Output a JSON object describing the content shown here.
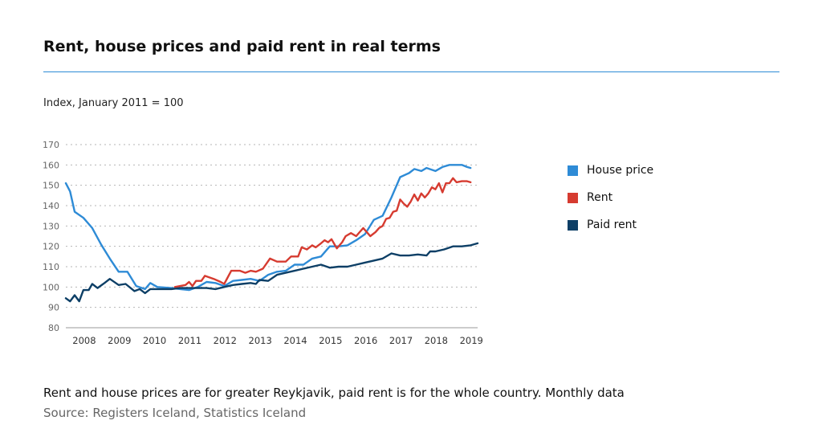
{
  "title": "Rent, house prices and paid rent in real terms",
  "subtitle": "Index, January 2011 = 100",
  "footnote": "Rent and house prices are for greater Reykjavik, paid rent is for the whole country. Monthly data",
  "source": "Source: Registers Iceland, Statistics Iceland",
  "colors": {
    "house_price": "#2e8bd6",
    "rent": "#d63b30",
    "paid_rent": "#0d3f66",
    "accent": "#2e8bd6"
  },
  "chart_data": {
    "type": "line",
    "ylabel": "Index, January 2011 = 100",
    "ylim": [
      80,
      170
    ],
    "yticks": [
      80,
      90,
      100,
      110,
      120,
      130,
      140,
      150,
      160,
      170
    ],
    "xlim": [
      2007.5,
      2019.2
    ],
    "xticks": [
      2008,
      2009,
      2010,
      2011,
      2012,
      2013,
      2014,
      2015,
      2016,
      2017,
      2018,
      2019
    ],
    "xtick_labels": [
      "2008",
      "2009",
      "2010",
      "2011",
      "2012",
      "2013",
      "2014",
      "2015",
      "2016",
      "2017",
      "2018",
      "2019"
    ],
    "grid": "horizontal dotted",
    "legend_position": "right",
    "series": [
      {
        "name": "House price",
        "color": "#2e8bd6",
        "points": [
          [
            2007.5,
            151
          ],
          [
            2007.62,
            147
          ],
          [
            2007.75,
            137
          ],
          [
            2008.0,
            134
          ],
          [
            2008.25,
            129
          ],
          [
            2008.5,
            121
          ],
          [
            2008.75,
            114
          ],
          [
            2009.0,
            107.5
          ],
          [
            2009.25,
            107.5
          ],
          [
            2009.5,
            100.5
          ],
          [
            2009.75,
            99
          ],
          [
            2009.9,
            102
          ],
          [
            2010.1,
            100
          ],
          [
            2010.5,
            99.5
          ],
          [
            2010.75,
            99
          ],
          [
            2011.0,
            98.5
          ],
          [
            2011.25,
            100
          ],
          [
            2011.5,
            102.5
          ],
          [
            2011.75,
            102
          ],
          [
            2012.0,
            100.5
          ],
          [
            2012.25,
            103
          ],
          [
            2012.5,
            103.5
          ],
          [
            2012.75,
            104
          ],
          [
            2013.0,
            103
          ],
          [
            2013.25,
            106
          ],
          [
            2013.5,
            107.5
          ],
          [
            2013.75,
            108
          ],
          [
            2014.0,
            111
          ],
          [
            2014.25,
            111
          ],
          [
            2014.5,
            114
          ],
          [
            2014.75,
            115
          ],
          [
            2015.0,
            120
          ],
          [
            2015.25,
            120
          ],
          [
            2015.5,
            120.5
          ],
          [
            2015.75,
            123
          ],
          [
            2016.0,
            126
          ],
          [
            2016.25,
            133
          ],
          [
            2016.5,
            135
          ],
          [
            2016.75,
            144
          ],
          [
            2017.0,
            154
          ],
          [
            2017.25,
            156
          ],
          [
            2017.4,
            158
          ],
          [
            2017.6,
            157
          ],
          [
            2017.75,
            158.5
          ],
          [
            2018.0,
            157
          ],
          [
            2018.2,
            159
          ],
          [
            2018.4,
            160
          ],
          [
            2018.6,
            160
          ],
          [
            2018.75,
            160
          ],
          [
            2018.9,
            159
          ],
          [
            2019.0,
            158.5
          ]
        ]
      },
      {
        "name": "Rent",
        "color": "#d63b30",
        "points": [
          [
            2010.6,
            100
          ],
          [
            2010.9,
            101
          ],
          [
            2011.0,
            102.5
          ],
          [
            2011.1,
            100.5
          ],
          [
            2011.2,
            103
          ],
          [
            2011.35,
            103
          ],
          [
            2011.45,
            105.5
          ],
          [
            2011.7,
            104
          ],
          [
            2011.9,
            102.5
          ],
          [
            2012.0,
            101.5
          ],
          [
            2012.2,
            108
          ],
          [
            2012.45,
            108
          ],
          [
            2012.6,
            107
          ],
          [
            2012.75,
            108
          ],
          [
            2012.9,
            107.5
          ],
          [
            2013.1,
            109
          ],
          [
            2013.3,
            114
          ],
          [
            2013.5,
            112.5
          ],
          [
            2013.75,
            112.5
          ],
          [
            2013.9,
            115
          ],
          [
            2014.1,
            115
          ],
          [
            2014.2,
            119.5
          ],
          [
            2014.35,
            118.5
          ],
          [
            2014.5,
            120.5
          ],
          [
            2014.6,
            119.5
          ],
          [
            2014.75,
            121.5
          ],
          [
            2014.85,
            123
          ],
          [
            2014.95,
            122
          ],
          [
            2015.05,
            123.5
          ],
          [
            2015.2,
            119
          ],
          [
            2015.35,
            122
          ],
          [
            2015.45,
            125
          ],
          [
            2015.6,
            126.5
          ],
          [
            2015.75,
            125
          ],
          [
            2015.85,
            127
          ],
          [
            2015.95,
            129
          ],
          [
            2016.05,
            127
          ],
          [
            2016.15,
            125
          ],
          [
            2016.3,
            127
          ],
          [
            2016.4,
            129
          ],
          [
            2016.5,
            130
          ],
          [
            2016.6,
            133.5
          ],
          [
            2016.7,
            134
          ],
          [
            2016.8,
            137
          ],
          [
            2016.9,
            137.5
          ],
          [
            2017.0,
            143
          ],
          [
            2017.1,
            141
          ],
          [
            2017.2,
            139.5
          ],
          [
            2017.3,
            142
          ],
          [
            2017.4,
            145.5
          ],
          [
            2017.5,
            142.5
          ],
          [
            2017.6,
            146
          ],
          [
            2017.7,
            144
          ],
          [
            2017.8,
            146
          ],
          [
            2017.9,
            149
          ],
          [
            2018.0,
            148
          ],
          [
            2018.1,
            151
          ],
          [
            2018.2,
            146.5
          ],
          [
            2018.3,
            151
          ],
          [
            2018.4,
            151
          ],
          [
            2018.5,
            153.5
          ],
          [
            2018.6,
            151.5
          ],
          [
            2018.75,
            152
          ],
          [
            2018.9,
            152
          ],
          [
            2019.0,
            151.5
          ]
        ]
      },
      {
        "name": "Paid rent",
        "color": "#0d3f66",
        "points": [
          [
            2007.5,
            94.5
          ],
          [
            2007.62,
            93
          ],
          [
            2007.75,
            96
          ],
          [
            2007.88,
            93
          ],
          [
            2008.0,
            98.5
          ],
          [
            2008.15,
            98.5
          ],
          [
            2008.25,
            101.5
          ],
          [
            2008.4,
            99.5
          ],
          [
            2008.6,
            102
          ],
          [
            2008.75,
            104
          ],
          [
            2009.0,
            101
          ],
          [
            2009.2,
            101.5
          ],
          [
            2009.45,
            98
          ],
          [
            2009.6,
            99
          ],
          [
            2009.75,
            97
          ],
          [
            2009.9,
            99
          ],
          [
            2010.25,
            99
          ],
          [
            2010.5,
            99
          ],
          [
            2010.75,
            99.5
          ],
          [
            2011.0,
            99.5
          ],
          [
            2011.25,
            99.5
          ],
          [
            2011.5,
            99.5
          ],
          [
            2011.75,
            99
          ],
          [
            2012.0,
            100
          ],
          [
            2012.25,
            101
          ],
          [
            2012.5,
            101.5
          ],
          [
            2012.75,
            102
          ],
          [
            2012.9,
            101.5
          ],
          [
            2013.0,
            103.5
          ],
          [
            2013.25,
            103
          ],
          [
            2013.5,
            106
          ],
          [
            2013.75,
            107
          ],
          [
            2014.0,
            108
          ],
          [
            2014.25,
            109
          ],
          [
            2014.5,
            110
          ],
          [
            2014.75,
            111
          ],
          [
            2015.0,
            109.5
          ],
          [
            2015.25,
            110
          ],
          [
            2015.5,
            110
          ],
          [
            2015.75,
            111
          ],
          [
            2016.0,
            112
          ],
          [
            2016.25,
            113
          ],
          [
            2016.5,
            114
          ],
          [
            2016.75,
            116.5
          ],
          [
            2017.0,
            115.5
          ],
          [
            2017.25,
            115.5
          ],
          [
            2017.5,
            116
          ],
          [
            2017.75,
            115.5
          ],
          [
            2017.85,
            117.5
          ],
          [
            2018.0,
            117.5
          ],
          [
            2018.25,
            118.5
          ],
          [
            2018.5,
            120
          ],
          [
            2018.75,
            120
          ],
          [
            2019.0,
            120.5
          ],
          [
            2019.2,
            121.5
          ]
        ]
      }
    ]
  }
}
